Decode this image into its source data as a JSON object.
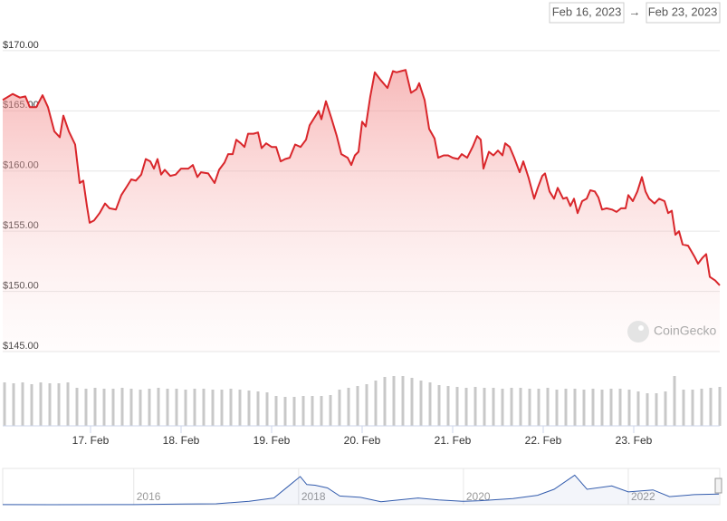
{
  "range": {
    "from": "Feb 16, 2023",
    "separator": "→",
    "to": "Feb 23, 2023"
  },
  "watermark": "CoinGecko",
  "chart_data": [
    {
      "type": "line",
      "color": "#d9262b",
      "area": true,
      "grid": true,
      "x": [
        16.03,
        16.14,
        16.22,
        16.28,
        16.33,
        16.4,
        16.47,
        16.53,
        16.6,
        16.66,
        16.7,
        16.76,
        16.83,
        16.88,
        16.92,
        16.96,
        16.99,
        17.04,
        17.1,
        17.16,
        17.21,
        17.28,
        17.34,
        17.4,
        17.45,
        17.5,
        17.56,
        17.61,
        17.66,
        17.7,
        17.74,
        17.78,
        17.82,
        17.88,
        17.94,
        18.0,
        18.08,
        18.13,
        18.18,
        18.22,
        18.3,
        18.37,
        18.42,
        18.48,
        18.52,
        18.57,
        18.61,
        18.66,
        18.7,
        18.74,
        18.8,
        18.85,
        18.89,
        18.94,
        19.0,
        19.05,
        19.1,
        19.15,
        19.2,
        19.26,
        19.32,
        19.38,
        19.42,
        19.47,
        19.52,
        19.55,
        19.6,
        19.66,
        19.72,
        19.77,
        19.84,
        19.88,
        19.92,
        19.96,
        20.0,
        20.04,
        20.09,
        20.14,
        20.2,
        20.28,
        20.34,
        20.38,
        20.43,
        20.48,
        20.54,
        20.6,
        20.63,
        20.69,
        20.74,
        20.8,
        20.84,
        20.9,
        20.95,
        21.0,
        21.06,
        21.1,
        21.16,
        21.22,
        21.27,
        21.31,
        21.34,
        21.4,
        21.45,
        21.5,
        21.55,
        21.58,
        21.63,
        21.68,
        21.74,
        21.78,
        21.84,
        21.9,
        21.94,
        21.99,
        22.02,
        22.07,
        22.12,
        22.16,
        22.22,
        22.26,
        22.3,
        22.34,
        22.38,
        22.43,
        22.48,
        22.52,
        22.57,
        22.61,
        22.65,
        22.7,
        22.76,
        22.81,
        22.86,
        22.91,
        22.94,
        22.99,
        23.04,
        23.09,
        23.13,
        23.17,
        23.23,
        23.28,
        23.34,
        23.38,
        23.42,
        23.46,
        23.5,
        23.54,
        23.6,
        23.67,
        23.71,
        23.76,
        23.8,
        23.84,
        23.9,
        23.95
      ],
      "values": [
        165.9,
        166.4,
        166.1,
        166.2,
        165.3,
        165.3,
        166.3,
        165.3,
        163.3,
        162.8,
        164.6,
        163.3,
        162.2,
        159.0,
        159.2,
        157.1,
        155.7,
        155.9,
        156.5,
        157.3,
        156.9,
        156.8,
        158.0,
        158.7,
        159.3,
        159.2,
        159.7,
        161.0,
        160.8,
        160.2,
        161.0,
        159.7,
        160.1,
        159.6,
        159.7,
        160.2,
        160.2,
        160.5,
        159.5,
        159.9,
        159.8,
        159.0,
        160.1,
        160.7,
        161.4,
        161.4,
        162.6,
        162.3,
        162.0,
        163.1,
        163.1,
        163.2,
        161.9,
        162.3,
        162.0,
        162.0,
        160.8,
        161.0,
        161.1,
        162.2,
        162.0,
        162.6,
        163.8,
        164.4,
        165.0,
        164.3,
        165.8,
        164.4,
        162.9,
        161.4,
        161.1,
        160.5,
        161.3,
        161.6,
        164.1,
        163.7,
        166.2,
        168.2,
        167.6,
        166.9,
        168.3,
        168.2,
        168.3,
        168.4,
        166.5,
        166.8,
        167.3,
        165.9,
        163.5,
        162.7,
        161.1,
        161.3,
        161.3,
        161.1,
        161.0,
        161.4,
        161.1,
        162.0,
        162.9,
        162.6,
        160.2,
        161.6,
        161.3,
        161.7,
        161.3,
        162.3,
        162.0,
        161.1,
        159.9,
        160.8,
        159.4,
        157.7,
        158.6,
        159.6,
        159.8,
        158.3,
        157.7,
        158.6,
        157.7,
        157.8,
        157.1,
        157.7,
        156.5,
        157.5,
        157.7,
        158.4,
        158.3,
        157.8,
        156.8,
        156.9,
        156.8,
        156.6,
        156.9,
        156.9,
        158.0,
        157.5,
        158.3,
        159.5,
        158.3,
        157.7,
        157.3,
        157.7,
        157.5,
        156.5,
        156.7,
        154.7,
        155.0,
        153.9,
        153.8,
        152.9,
        152.3,
        152.8,
        153.1,
        151.2,
        150.9,
        150.5
      ],
      "xlim": [
        16.03,
        23.95
      ],
      "xticks": [
        {
          "value": 17,
          "label": "17. Feb"
        },
        {
          "value": 18,
          "label": "18. Feb"
        },
        {
          "value": 19,
          "label": "19. Feb"
        },
        {
          "value": 20,
          "label": "20. Feb"
        },
        {
          "value": 21,
          "label": "21. Feb"
        },
        {
          "value": 22,
          "label": "22. Feb"
        },
        {
          "value": 23,
          "label": "23. Feb"
        }
      ],
      "ylim": [
        145,
        171.95
      ],
      "yticks": [
        {
          "value": 145,
          "label": "$145.00"
        },
        {
          "value": 150,
          "label": "$150.00"
        },
        {
          "value": 155,
          "label": "$155.00"
        },
        {
          "value": 160,
          "label": "$160.00"
        },
        {
          "value": 165,
          "label": "$165.00"
        },
        {
          "value": 170,
          "label": "$170.00"
        }
      ]
    },
    {
      "type": "bar",
      "color": "#c8c8c8",
      "x": [
        16.05,
        16.15,
        16.25,
        16.35,
        16.45,
        16.55,
        16.65,
        16.75,
        16.85,
        16.95,
        17.05,
        17.15,
        17.25,
        17.35,
        17.45,
        17.55,
        17.65,
        17.75,
        17.85,
        17.95,
        18.05,
        18.15,
        18.25,
        18.35,
        18.45,
        18.55,
        18.65,
        18.75,
        18.85,
        18.95,
        19.05,
        19.15,
        19.25,
        19.35,
        19.45,
        19.55,
        19.65,
        19.75,
        19.85,
        19.95,
        20.05,
        20.15,
        20.25,
        20.35,
        20.45,
        20.55,
        20.65,
        20.75,
        20.85,
        20.95,
        21.05,
        21.15,
        21.25,
        21.35,
        21.45,
        21.55,
        21.65,
        21.75,
        21.85,
        21.95,
        22.05,
        22.15,
        22.25,
        22.35,
        22.45,
        22.55,
        22.65,
        22.75,
        22.85,
        22.95,
        23.05,
        23.15,
        23.25,
        23.35,
        23.45,
        23.55,
        23.65,
        23.75,
        23.85,
        23.95
      ],
      "values": [
        48,
        47,
        48,
        46,
        48,
        47,
        47,
        48,
        42,
        41,
        42,
        41,
        41,
        42,
        41,
        40,
        41,
        42,
        41,
        41,
        40,
        41,
        41,
        40,
        40,
        41,
        40,
        39,
        38,
        37,
        33,
        32,
        32,
        33,
        33,
        33,
        34,
        40,
        42,
        44,
        46,
        50,
        54,
        55,
        55,
        53,
        50,
        48,
        45,
        44,
        43,
        42,
        43,
        42,
        42,
        41,
        42,
        42,
        41,
        41,
        42,
        40,
        41,
        41,
        40,
        41,
        40,
        41,
        41,
        40,
        38,
        36,
        36,
        38,
        55,
        40,
        40,
        41,
        42,
        43
      ],
      "xlim": [
        16.03,
        23.95
      ],
      "ylim": [
        0,
        60
      ]
    },
    {
      "type": "line",
      "color": "#335cad",
      "area": true,
      "x": [
        2014.41,
        2015,
        2016,
        2016.6,
        2017,
        2017.4,
        2017.7,
        2017.9,
        2018.02,
        2018.1,
        2018.2,
        2018.35,
        2018.5,
        2018.75,
        2019,
        2019.45,
        2019.7,
        2020,
        2020.2,
        2020.6,
        2020.9,
        2021.1,
        2021.35,
        2021.5,
        2021.8,
        2022,
        2022.3,
        2022.5,
        2022.8,
        2023.1
      ],
      "values": [
        1,
        0.5,
        1,
        10,
        13,
        50,
        100,
        300,
        420,
        300,
        290,
        250,
        130,
        110,
        45,
        100,
        70,
        50,
        60,
        90,
        140,
        230,
        440,
        230,
        280,
        190,
        220,
        120,
        150,
        160
      ],
      "xlim": [
        2014.41,
        2023.11
      ],
      "xticks": [
        2016,
        2018,
        2020,
        2022
      ],
      "ylim": [
        0,
        500
      ]
    }
  ]
}
